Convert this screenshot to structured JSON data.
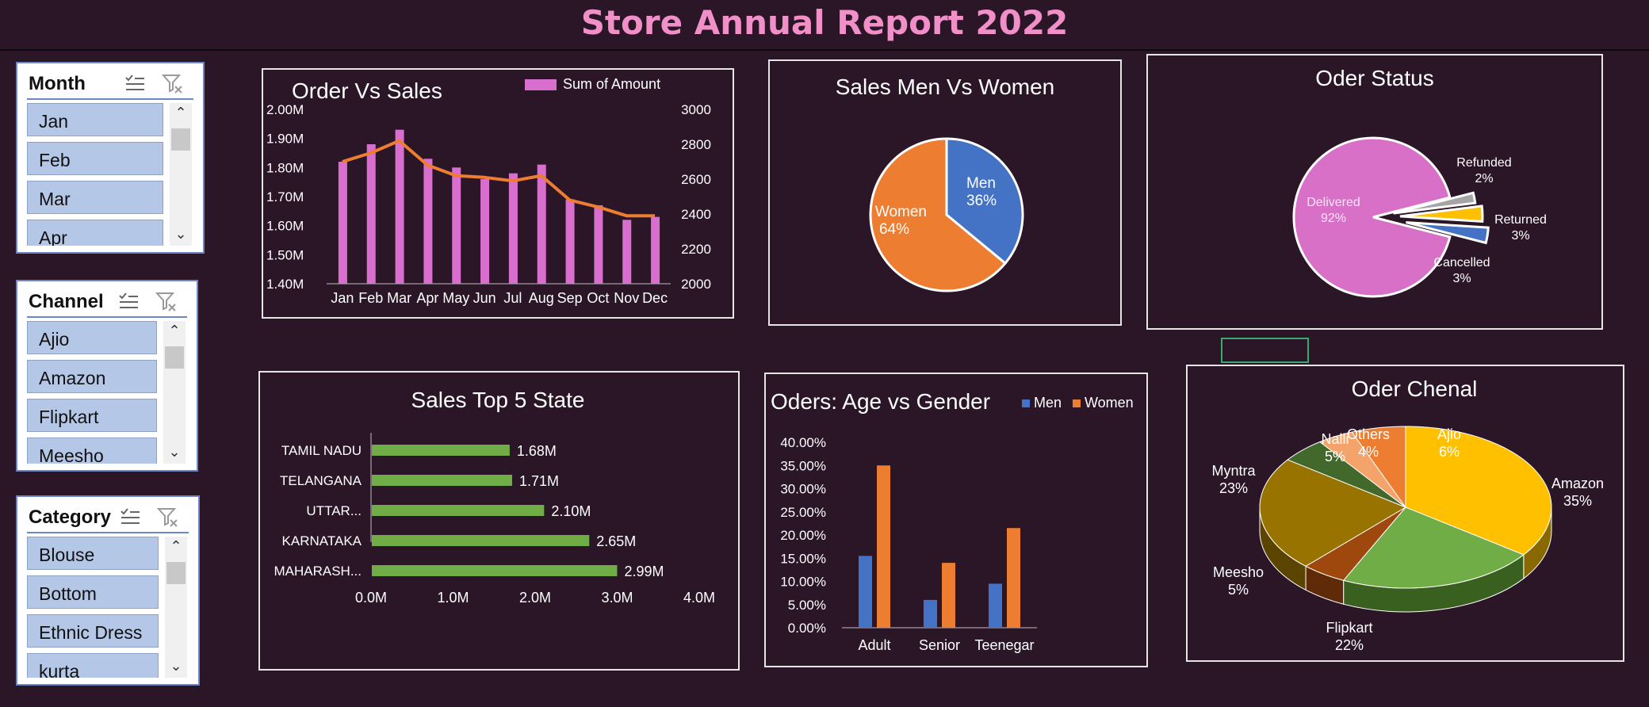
{
  "header": {
    "title": "Store Annual Report  2022"
  },
  "slicers": {
    "month": {
      "title": "Month",
      "items": [
        "Jan",
        "Feb",
        "Mar",
        "Apr"
      ]
    },
    "channel": {
      "title": "Channel",
      "items": [
        "Ajio",
        "Amazon",
        "Flipkart",
        "Meesho"
      ]
    },
    "category": {
      "title": "Category",
      "items": [
        "Blouse",
        "Bottom",
        "Ethnic Dress",
        "kurta"
      ]
    }
  },
  "colors": {
    "background": "#2b1628",
    "title": "#f08fc8",
    "bar_pink": "#d86fcf",
    "line_orange": "#ed7d31",
    "men_blue": "#4472c4",
    "women_orange": "#ed7d31",
    "green": "#70ad47",
    "slicer_item": "#b4c7e7"
  },
  "chart_data": [
    {
      "type": "bar+line",
      "title": "Order Vs Sales",
      "categories": [
        "Jan",
        "Feb",
        "Mar",
        "Apr",
        "May",
        "Jun",
        "Jul",
        "Aug",
        "Sep",
        "Oct",
        "Nov",
        "Dec"
      ],
      "series": [
        {
          "name": "Sum of Amount",
          "type": "bar",
          "axis": "left",
          "values": [
            1.82,
            1.88,
            1.93,
            1.83,
            1.8,
            1.76,
            1.78,
            1.81,
            1.69,
            1.67,
            1.62,
            1.63
          ]
        },
        {
          "type": "line",
          "axis": "right",
          "values": [
            2700,
            2750,
            2820,
            2680,
            2620,
            2610,
            2590,
            2620,
            2480,
            2440,
            2390,
            2390
          ]
        }
      ],
      "left_ticks": [
        "2.00M",
        "1.90M",
        "1.80M",
        "1.70M",
        "1.60M",
        "1.50M",
        "1.40M"
      ],
      "right_ticks": [
        "3000",
        "2800",
        "2600",
        "2400",
        "2200",
        "2000"
      ],
      "ylim_left": [
        1.4,
        2.0
      ],
      "ylim_right": [
        2000,
        3000
      ],
      "legend": "top-right"
    },
    {
      "type": "pie",
      "title": "Sales Men Vs Women",
      "slices": [
        {
          "label": "Men",
          "value": 36,
          "pct": "36%"
        },
        {
          "label": "Women",
          "value": 64,
          "pct": "64%"
        }
      ]
    },
    {
      "type": "pie",
      "title": "Oder Status",
      "slices": [
        {
          "label": "Delivered",
          "value": 92,
          "pct": "92%"
        },
        {
          "label": "Refunded",
          "value": 2,
          "pct": "2%"
        },
        {
          "label": "Returned",
          "value": 3,
          "pct": "3%"
        },
        {
          "label": "Cancelled",
          "value": 3,
          "pct": "3%"
        }
      ]
    },
    {
      "type": "bar",
      "orientation": "horizontal",
      "title": "Sales Top 5 State",
      "categories": [
        "TAMIL NADU",
        "TELANGANA",
        "UTTAR...",
        "KARNATAKA",
        "MAHARASH..."
      ],
      "values": [
        1.68,
        1.71,
        2.1,
        2.65,
        2.99
      ],
      "data_labels": [
        "1.68M",
        "1.71M",
        "2.10M",
        "2.65M",
        "2.99M"
      ],
      "x_ticks": [
        "0.0M",
        "1.0M",
        "2.0M",
        "3.0M",
        "4.0M"
      ],
      "xlim": [
        0,
        4
      ]
    },
    {
      "type": "bar",
      "title": "Oders: Age vs Gender",
      "categories": [
        "Adult",
        "Senior",
        "Teenegar"
      ],
      "series": [
        {
          "name": "Men",
          "values": [
            15.5,
            6.0,
            9.5
          ]
        },
        {
          "name": "Women",
          "values": [
            35.0,
            14.0,
            21.5
          ]
        }
      ],
      "y_ticks": [
        "40.00%",
        "35.00%",
        "30.00%",
        "25.00%",
        "20.00%",
        "15.00%",
        "10.00%",
        "5.00%",
        "0.00%"
      ],
      "ylim": [
        0,
        40
      ],
      "legend": "top-right"
    },
    {
      "type": "pie",
      "title": "Oder Chenal",
      "slices": [
        {
          "label": "Amazon",
          "value": 35,
          "pct": "35%"
        },
        {
          "label": "Flipkart",
          "value": 22,
          "pct": "22%"
        },
        {
          "label": "Meesho",
          "value": 5,
          "pct": "5%"
        },
        {
          "label": "Myntra",
          "value": 23,
          "pct": "23%"
        },
        {
          "label": "Nalli",
          "value": 5,
          "pct": "5%"
        },
        {
          "label": "Others",
          "value": 4,
          "pct": "4%"
        },
        {
          "label": "Ajio",
          "value": 6,
          "pct": "6%"
        }
      ]
    }
  ]
}
